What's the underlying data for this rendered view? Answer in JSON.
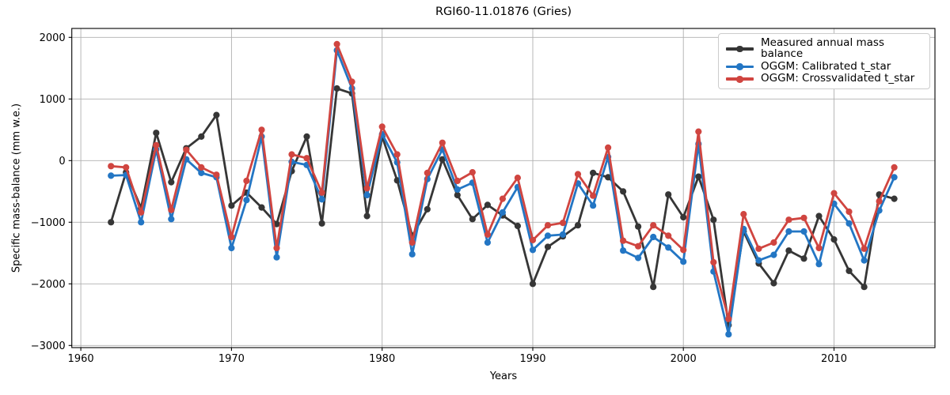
{
  "chart_data": {
    "type": "line",
    "title": "RGI60-11.01876 (Gries)",
    "xlabel": "Years",
    "ylabel": "Specific mass-balance (mm w.e.)",
    "grid": true,
    "legend_position": "upper right",
    "x_ticks": [
      1960,
      1970,
      1980,
      1990,
      2000,
      2010
    ],
    "y_ticks": [
      2000,
      1000,
      0,
      -1000,
      -2000,
      -3000
    ],
    "xlim": [
      1959.4,
      2016.7
    ],
    "ylim": [
      -3035,
      2145
    ],
    "years": [
      1962,
      1963,
      1964,
      1965,
      1966,
      1967,
      1968,
      1969,
      1970,
      1971,
      1972,
      1973,
      1974,
      1975,
      1976,
      1977,
      1978,
      1979,
      1980,
      1981,
      1982,
      1983,
      1984,
      1985,
      1986,
      1987,
      1988,
      1989,
      1990,
      1991,
      1992,
      1993,
      1994,
      1995,
      1996,
      1997,
      1998,
      1999,
      2000,
      2001,
      2002,
      2003,
      2004,
      2005,
      2006,
      2007,
      2008,
      2009,
      2010,
      2011,
      2012,
      2013,
      2014
    ],
    "series": [
      {
        "key": "measured",
        "name": "Measured annual mass balance",
        "color": "#363636",
        "values": [
          -1000,
          -190,
          -770,
          450,
          -350,
          200,
          390,
          740,
          -730,
          -520,
          -760,
          -1030,
          -170,
          390,
          -1020,
          1170,
          1090,
          -900,
          390,
          -320,
          -1220,
          -790,
          20,
          -560,
          -950,
          -720,
          -890,
          -1060,
          -2000,
          -1400,
          -1230,
          -1050,
          -200,
          -270,
          -500,
          -1070,
          -2050,
          -550,
          -920,
          -260,
          -960,
          -2670,
          -1150,
          -1670,
          -1990,
          -1460,
          -1590,
          -900,
          -1280,
          -1790,
          -2050,
          -550,
          -620
        ]
      },
      {
        "key": "calibrated",
        "name": "OGGM: Calibrated t_star",
        "color": "#2376c4",
        "values": [
          -245,
          -235,
          -1000,
          180,
          -950,
          20,
          -200,
          -270,
          -1420,
          -640,
          390,
          -1570,
          -20,
          -70,
          -630,
          1790,
          1170,
          -560,
          430,
          -30,
          -1520,
          -300,
          180,
          -470,
          -360,
          -1330,
          -840,
          -430,
          -1450,
          -1220,
          -1200,
          -370,
          -730,
          60,
          -1460,
          -1580,
          -1240,
          -1410,
          -1640,
          270,
          -1800,
          -2820,
          -1110,
          -1620,
          -1530,
          -1150,
          -1150,
          -1680,
          -700,
          -1020,
          -1620,
          -810,
          -270
        ]
      },
      {
        "key": "crossvalidated",
        "name": "OGGM: Crossvalidated t_star",
        "color": "#d04540",
        "values": [
          -90,
          -110,
          -840,
          250,
          -800,
          175,
          -110,
          -230,
          -1240,
          -330,
          500,
          -1420,
          100,
          40,
          -520,
          1890,
          1280,
          -450,
          550,
          100,
          -1330,
          -200,
          290,
          -330,
          -190,
          -1200,
          -620,
          -280,
          -1290,
          -1050,
          -1010,
          -220,
          -570,
          210,
          -1300,
          -1390,
          -1050,
          -1220,
          -1450,
          470,
          -1650,
          -2570,
          -870,
          -1430,
          -1330,
          -960,
          -930,
          -1420,
          -530,
          -830,
          -1430,
          -660,
          -110
        ]
      }
    ],
    "style": {
      "grid_color": "#b0b0b0",
      "spine_color": "#000000",
      "background": "#ffffff",
      "line_width": 2.8,
      "marker_radius": 4.1
    }
  }
}
